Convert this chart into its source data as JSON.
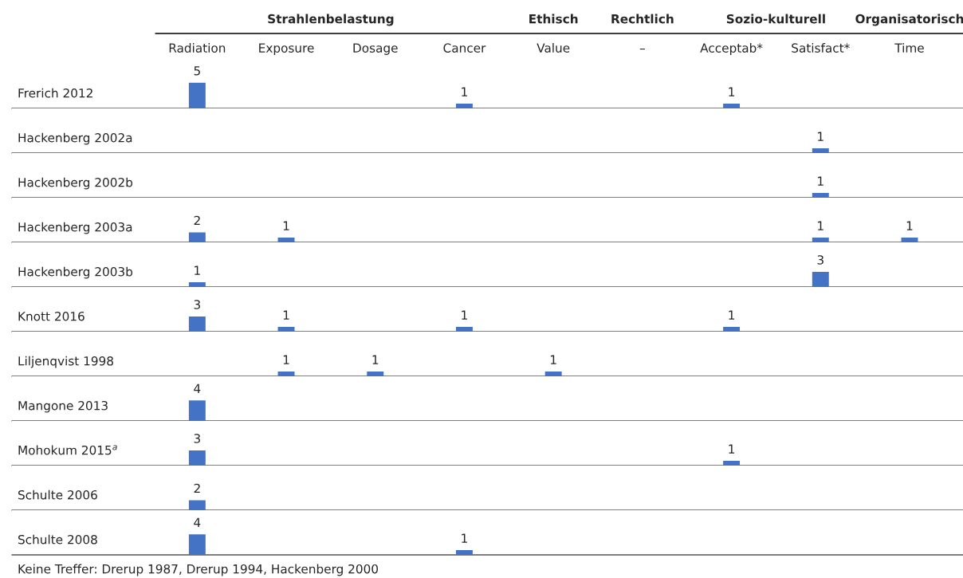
{
  "chart_data": [
    {
      "type": "bar",
      "title": "Frerich 2012",
      "categories": [
        "Radiation",
        "Exposure",
        "Dosage",
        "Cancer",
        "Value",
        "–",
        "Acceptab*",
        "Satisfact*",
        "Time"
      ],
      "values": [
        5,
        null,
        null,
        1,
        null,
        null,
        1,
        null,
        null
      ],
      "color": "#4472c4",
      "data_labels": true,
      "tick_labels": "x",
      "annotations": [
        "Strahlenbelastung",
        "Ethisch",
        "Rechtlich",
        "Sozio-kulturell",
        "Organisatorisch"
      ]
    },
    {
      "type": "bar",
      "title": "Hackenberg 2002a",
      "values": [
        null,
        null,
        null,
        null,
        null,
        null,
        null,
        1,
        null
      ],
      "color": "#4472c4",
      "data_labels": true,
      "tick_labels": false
    },
    {
      "type": "bar",
      "title": "Hackenberg 2002b",
      "values": [
        null,
        null,
        null,
        null,
        null,
        null,
        null,
        1,
        null
      ],
      "color": "#4472c4",
      "data_labels": true,
      "tick_labels": false
    },
    {
      "type": "bar",
      "title": "Hackenberg 2003a",
      "values": [
        2,
        1,
        null,
        null,
        null,
        null,
        null,
        1,
        1
      ],
      "color": "#4472c4",
      "data_labels": true,
      "tick_labels": false
    },
    {
      "type": "bar",
      "title": "Hackenberg 2003b",
      "values": [
        1,
        null,
        null,
        null,
        null,
        null,
        null,
        3,
        null
      ],
      "color": "#4472c4",
      "data_labels": true,
      "tick_labels": false
    },
    {
      "type": "bar",
      "title": "Knott 2016",
      "values": [
        3,
        1,
        null,
        1,
        null,
        null,
        1,
        null,
        null
      ],
      "color": "#4472c4",
      "data_labels": true,
      "tick_labels": false
    },
    {
      "type": "bar",
      "title": "Liljenqvist 1998",
      "values": [
        null,
        1,
        1,
        null,
        1,
        null,
        null,
        null,
        null
      ],
      "color": "#4472c4",
      "data_labels": true,
      "tick_labels": false
    },
    {
      "type": "bar",
      "title": "Mangone 2013",
      "values": [
        4,
        null,
        null,
        null,
        null,
        null,
        null,
        null,
        null
      ],
      "color": "#4472c4",
      "data_labels": true,
      "tick_labels": false
    },
    {
      "type": "bar",
      "title": "Mohokum 2015$^{a}$",
      "values": [
        3,
        null,
        null,
        null,
        null,
        null,
        1,
        null,
        null
      ],
      "color": "#4472c4",
      "data_labels": true,
      "tick_labels": false
    },
    {
      "type": "bar",
      "title": "Schulte 2006",
      "values": [
        2,
        null,
        null,
        null,
        null,
        null,
        null,
        null,
        null
      ],
      "color": "#4472c4",
      "data_labels": true,
      "tick_labels": false
    },
    {
      "type": "bar",
      "title": "Schulte 2008",
      "values": [
        4,
        null,
        null,
        1,
        null,
        null,
        null,
        null,
        null
      ],
      "color": "#4472c4",
      "data_labels": true,
      "tick_labels": false,
      "annotations": [
        "Keine Treffer: Drerup 1987, Drerup 1994, Hackenberg 2000"
      ]
    }
  ]
}
